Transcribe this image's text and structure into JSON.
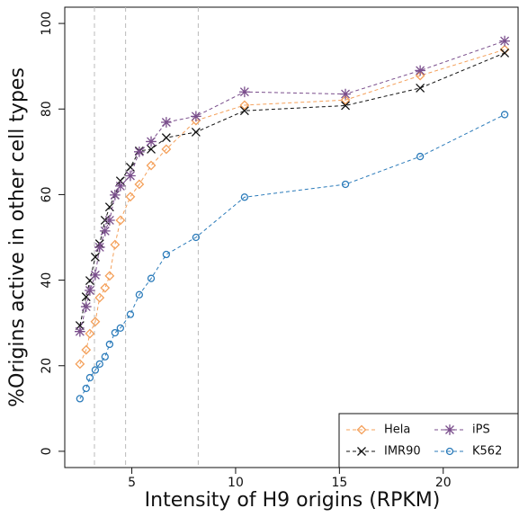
{
  "chart_data": {
    "type": "line",
    "x_label": "Intensity of H9 origins (RPKM)",
    "y_label": "%Origins active in other cell types",
    "x": [
      2.5,
      2.8,
      2.98,
      3.24,
      3.45,
      3.71,
      3.93,
      4.19,
      4.45,
      4.93,
      5.36,
      5.93,
      6.66,
      8.09,
      10.43,
      15.29,
      18.89,
      22.96
    ],
    "series": [
      {
        "name": "Hela",
        "color": "#f4a05a",
        "marker": "diamond",
        "values": [
          20.4,
          23.7,
          27.5,
          30.3,
          35.9,
          38.2,
          41.0,
          48.3,
          54.0,
          59.5,
          62.4,
          66.8,
          70.6,
          77.3,
          80.9,
          82.1,
          87.8,
          93.9
        ]
      },
      {
        "name": "IMR90",
        "color": "#111111",
        "marker": "x",
        "values": [
          29.4,
          36.1,
          39.9,
          45.4,
          48.5,
          54.0,
          57.1,
          59.9,
          63.2,
          66.4,
          70.2,
          70.6,
          73.3,
          74.6,
          79.6,
          80.8,
          84.9,
          93.1
        ]
      },
      {
        "name": "iPS",
        "color": "#7a4e8c",
        "marker": "asterisk",
        "values": [
          28.0,
          33.8,
          37.6,
          41.2,
          47.7,
          51.5,
          54.0,
          59.9,
          62.0,
          64.4,
          70.0,
          72.4,
          76.9,
          78.3,
          84.0,
          83.5,
          89.0,
          95.9
        ]
      },
      {
        "name": "K562",
        "color": "#2b7bba",
        "marker": "circle",
        "values": [
          12.3,
          14.7,
          17.2,
          19.0,
          20.4,
          22.1,
          25.0,
          27.7,
          28.8,
          32.0,
          36.6,
          40.4,
          46.0,
          50.0,
          59.4,
          62.4,
          68.9,
          78.7
        ]
      }
    ],
    "vlines": [
      3.2,
      4.7,
      8.2
    ],
    "xlim": [
      1.77,
      23.65
    ],
    "ylim": [
      -3.8,
      103.8
    ],
    "xticks": [
      5,
      10,
      15,
      20
    ],
    "yticks": [
      0,
      20,
      40,
      60,
      80,
      100
    ],
    "legend": "bottom-right"
  }
}
